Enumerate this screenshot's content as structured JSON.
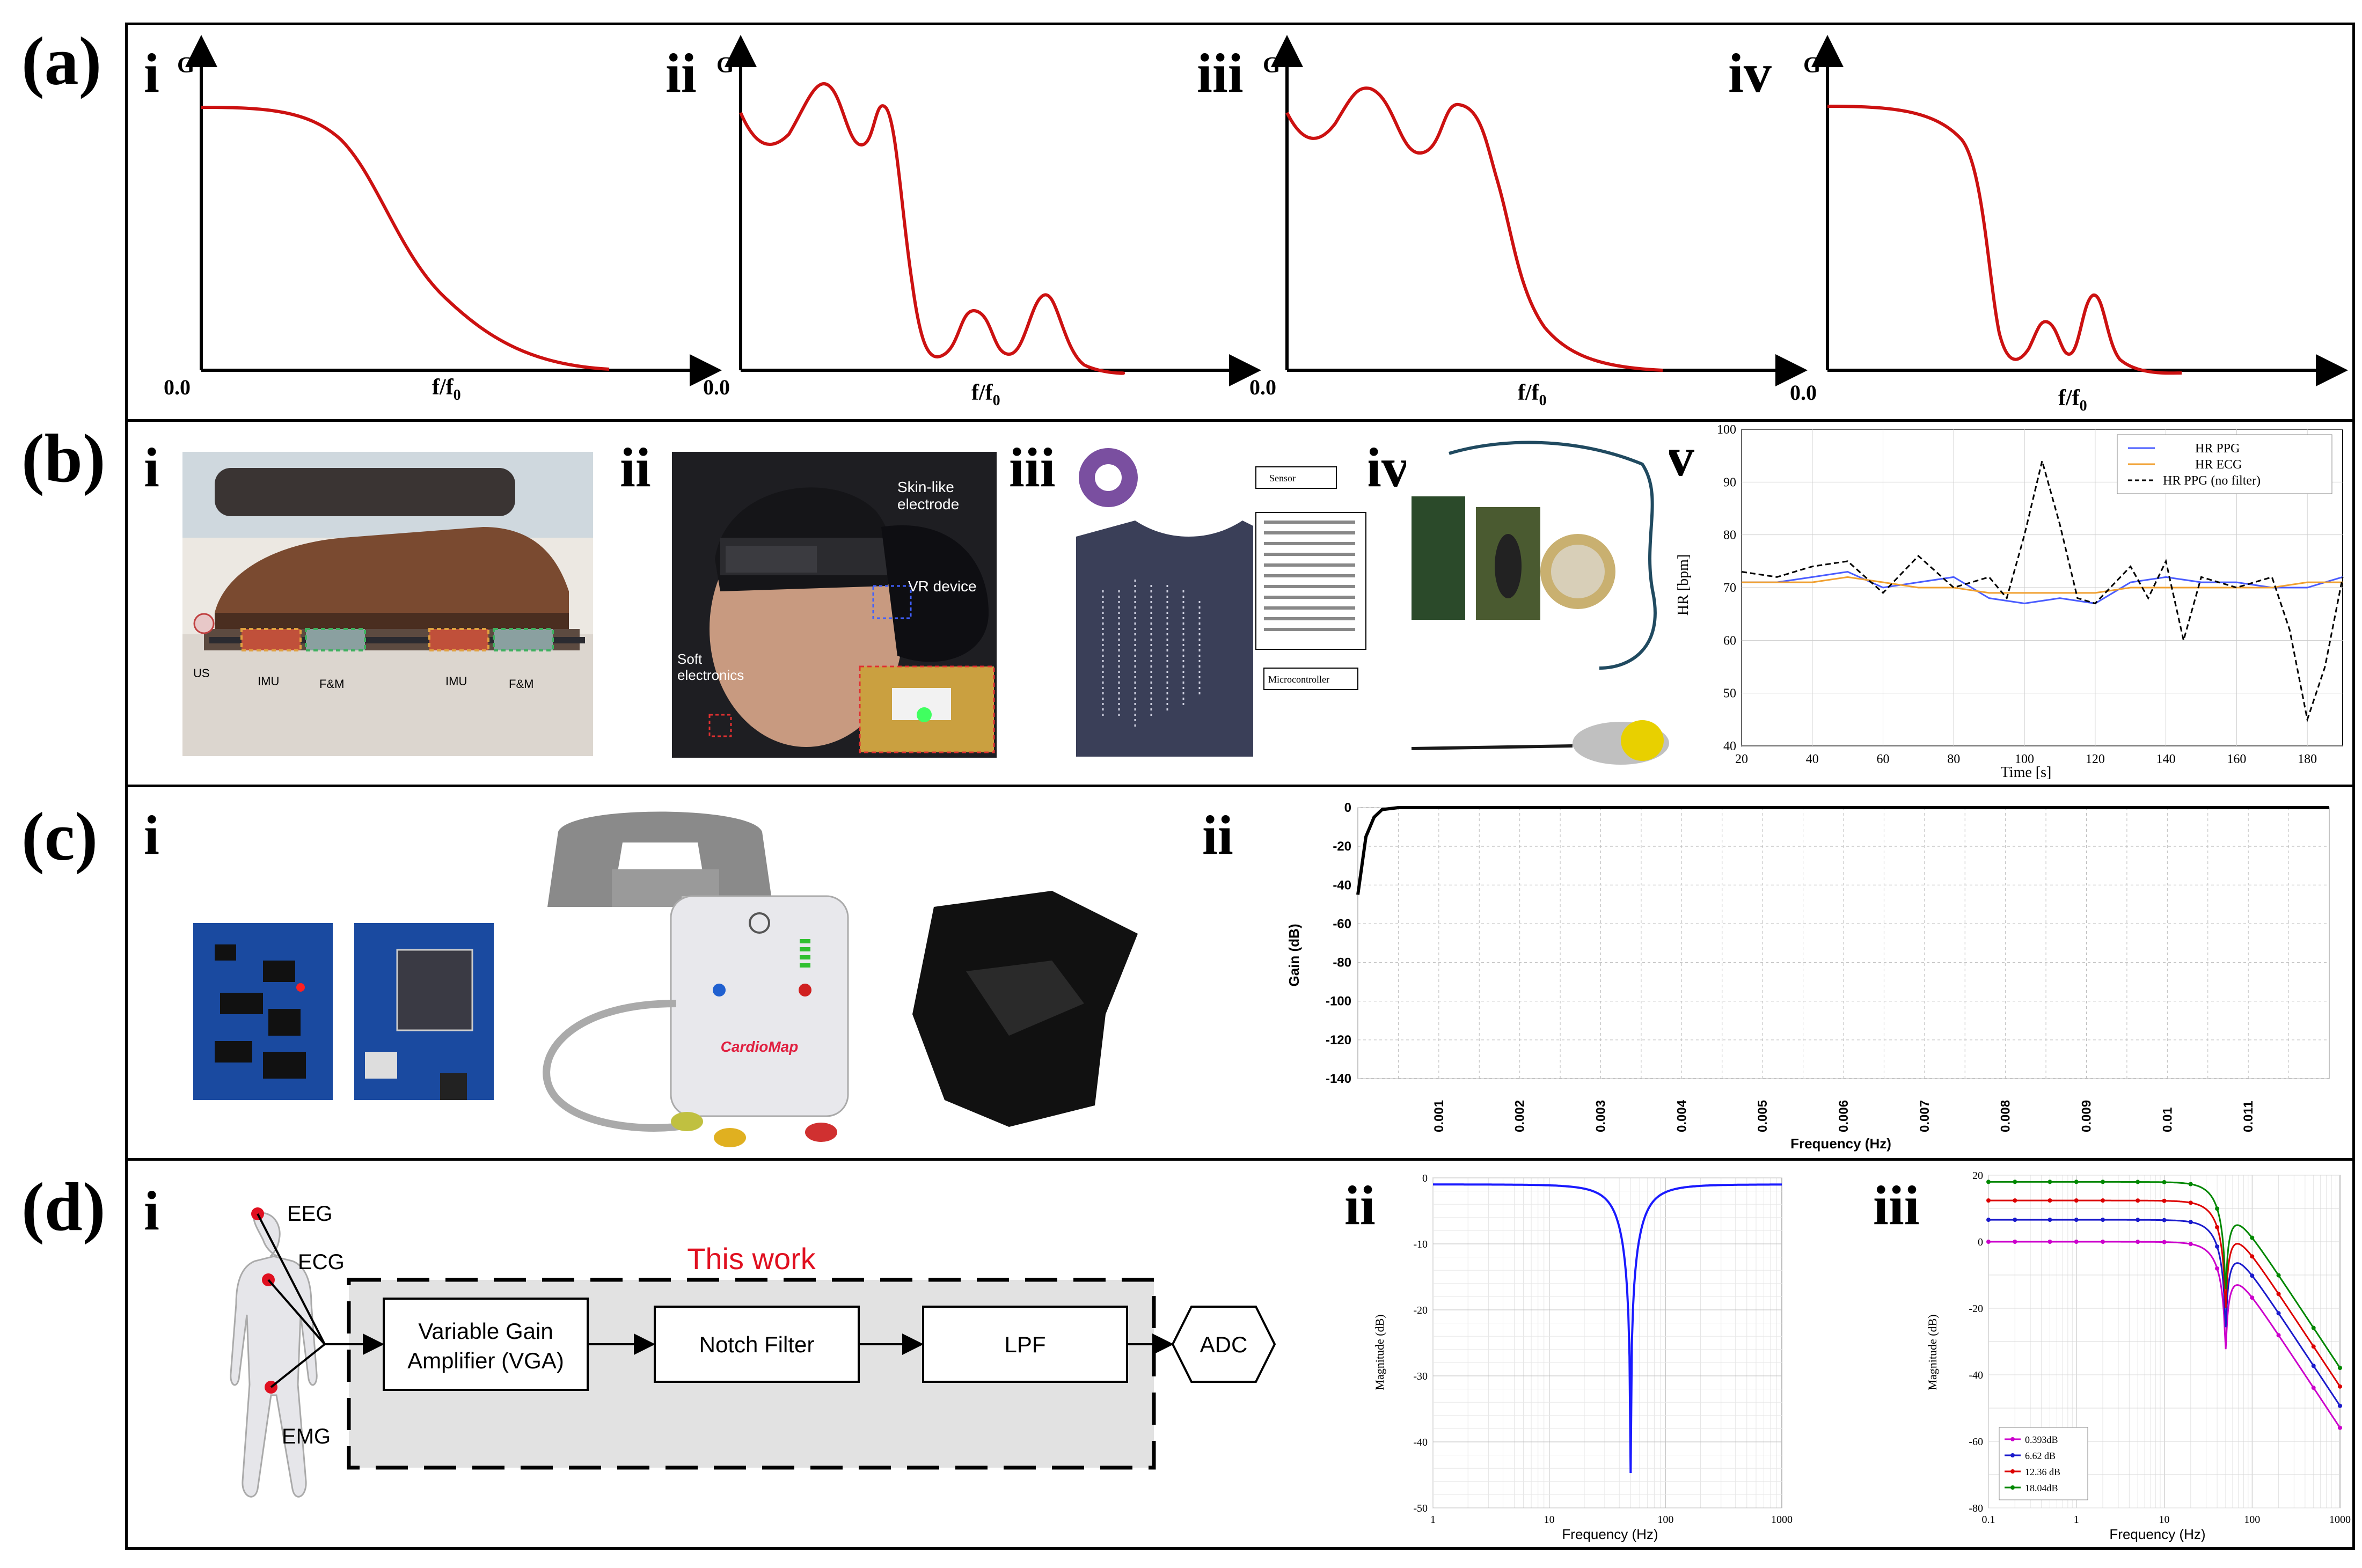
{
  "panels": {
    "a": {
      "label": "(a)",
      "subs": [
        "i",
        "ii",
        "iii",
        "iv"
      ],
      "y_axis": "G",
      "x_axis": "f/f",
      "x_sub": "0",
      "origin": "0.0"
    },
    "b": {
      "label": "(b)",
      "subs": [
        "i",
        "ii",
        "iii",
        "iv",
        "v"
      ],
      "photo_i_labels": [
        "US",
        "IMU",
        "F&M",
        "IMU",
        "F&M"
      ],
      "photo_ii_labels": {
        "electrode": "Skin-like electrode",
        "vr": "VR device",
        "soft": "Soft electronics"
      },
      "photo_iii_labels": [
        "Sensor",
        "Microcontroller"
      ]
    },
    "c": {
      "label": "(c)",
      "subs": [
        "i",
        "ii"
      ],
      "brand": "CardioMap"
    },
    "d": {
      "label": "(d)",
      "subs": [
        "i",
        "ii",
        "iii"
      ],
      "body_labels": [
        "EEG",
        "ECG",
        "EMG"
      ],
      "this_work": "This work",
      "blocks": [
        "Variable Gain Amplifier (VGA)",
        "Notch Filter",
        "LPF",
        "ADC"
      ]
    }
  },
  "chart_data": [
    {
      "type": "line",
      "panel": "a-i",
      "description_text": "",
      "x": [
        0.0,
        0.5,
        1.0
      ],
      "series": [
        {
          "values": [
            0.93,
            0.5,
            0.0
          ]
        }
      ]
    },
    {
      "type": "line",
      "panel": "a-ii",
      "x": [],
      "series": []
    },
    {
      "type": "line",
      "panel": "a-iii",
      "x": [],
      "series": []
    },
    {
      "type": "line",
      "panel": "a-iv",
      "x": [],
      "series": []
    },
    {
      "type": "line",
      "panel": "b-v",
      "xlabel": "Time [s]",
      "ylabel": "HR [bpm]",
      "xlim": [
        20,
        190
      ],
      "ylim": [
        40,
        100
      ],
      "xticks": [
        20,
        40,
        60,
        80,
        100,
        120,
        140,
        160,
        180
      ],
      "yticks": [
        40,
        50,
        60,
        70,
        80,
        90,
        100
      ],
      "series": [
        {
          "name": "HR PPG",
          "color": "#4a5cff",
          "x": [
            20,
            30,
            40,
            50,
            60,
            70,
            80,
            90,
            100,
            110,
            120,
            130,
            140,
            150,
            160,
            170,
            180,
            190
          ],
          "values": [
            71,
            71,
            72,
            73,
            70,
            71,
            72,
            68,
            67,
            68,
            67,
            71,
            72,
            71,
            71,
            70,
            70,
            72
          ]
        },
        {
          "name": "HR ECG",
          "color": "#f0a030",
          "x": [
            20,
            30,
            40,
            50,
            60,
            70,
            80,
            90,
            100,
            110,
            120,
            130,
            140,
            150,
            160,
            170,
            180,
            190
          ],
          "values": [
            71,
            71,
            71,
            72,
            71,
            70,
            70,
            69,
            69,
            69,
            69,
            70,
            70,
            70,
            70,
            70,
            71,
            71
          ]
        },
        {
          "name": "HR PPG (no filter)",
          "color": "#000000",
          "dash": true,
          "x": [
            20,
            30,
            40,
            50,
            60,
            70,
            80,
            90,
            95,
            100,
            105,
            110,
            115,
            120,
            130,
            135,
            140,
            145,
            150,
            160,
            170,
            175,
            180,
            185,
            190
          ],
          "values": [
            73,
            72,
            74,
            75,
            69,
            76,
            70,
            72,
            68,
            80,
            94,
            82,
            68,
            67,
            74,
            68,
            75,
            60,
            72,
            70,
            72,
            62,
            45,
            55,
            72
          ]
        }
      ]
    },
    {
      "type": "line",
      "panel": "c-ii",
      "xlabel": "Frequency (Hz)",
      "ylabel": "Gain (dB)",
      "ylim": [
        -140,
        0
      ],
      "yticks": [
        0,
        -20,
        -40,
        -60,
        -80,
        -100,
        -120,
        -140
      ],
      "xticks": [
        "0.001",
        "0.002",
        "0.003",
        "0.004",
        "0.005",
        "0.006",
        "0.007",
        "0.008",
        "0.009",
        "0.01",
        "0.011"
      ],
      "series": [
        {
          "x": [
            0,
            0.0001,
            0.0002,
            0.0003,
            0.0005,
            0.012
          ],
          "values": [
            -45,
            -15,
            -5,
            -1,
            0,
            0
          ]
        }
      ]
    },
    {
      "type": "line",
      "panel": "d-ii",
      "xlabel": "Frequency (Hz)",
      "ylabel": "Magnitude (dB)",
      "xscale": "log",
      "xlim": [
        1,
        1000
      ],
      "ylim": [
        -50,
        0
      ],
      "xticks": [
        "1",
        "10",
        "100",
        "1000"
      ],
      "yticks": [
        "0",
        "-10",
        "-20",
        "-30",
        "-40",
        "-50"
      ],
      "series": [
        {
          "color": "#1a1aff",
          "x": [
            1,
            10,
            30,
            45,
            50,
            55,
            80,
            200,
            1000
          ],
          "values": [
            -1,
            -1.5,
            -4,
            -15,
            -45,
            -15,
            -4,
            -2,
            -1.5
          ]
        }
      ]
    },
    {
      "type": "line",
      "panel": "d-iii",
      "xlabel": "Frequency (Hz)",
      "ylabel": "Magnitude (dB)",
      "xscale": "log",
      "xlim": [
        0.1,
        1000
      ],
      "ylim": [
        -80,
        20
      ],
      "xticks": [
        "0.1",
        "1",
        "10",
        "100",
        "1000"
      ],
      "yticks": [
        "20",
        "0",
        "-20",
        "-40",
        "-60",
        "-80"
      ],
      "legend_position": "bottom-left",
      "series": [
        {
          "name": "0.393dB",
          "color": "#cc00cc",
          "x": [
            0.1,
            1,
            10,
            20,
            40,
            50,
            60,
            100,
            300,
            1000
          ],
          "values": [
            0,
            0,
            0,
            -3,
            -20,
            -50,
            -35,
            -40,
            -55,
            -70
          ]
        },
        {
          "name": "6.62 dB",
          "color": "#1a1acc",
          "x": [
            0.1,
            1,
            10,
            20,
            40,
            50,
            60,
            100,
            300,
            1000
          ],
          "values": [
            6.6,
            6.6,
            6.6,
            3,
            -14,
            -47,
            -28,
            -33,
            -48,
            -63
          ]
        },
        {
          "name": "12.36 dB",
          "color": "#dd0000",
          "x": [
            0.1,
            1,
            10,
            20,
            40,
            50,
            60,
            100,
            300,
            1000
          ],
          "values": [
            12.4,
            12.4,
            12.4,
            9,
            -8,
            -42,
            -22,
            -27,
            -42,
            -57
          ]
        },
        {
          "name": "18.04dB",
          "color": "#008800",
          "x": [
            0.1,
            1,
            10,
            20,
            40,
            50,
            60,
            100,
            300,
            1000
          ],
          "values": [
            18,
            18,
            18,
            15,
            -2,
            -36,
            -16,
            -21,
            -36,
            -51
          ]
        }
      ]
    }
  ]
}
